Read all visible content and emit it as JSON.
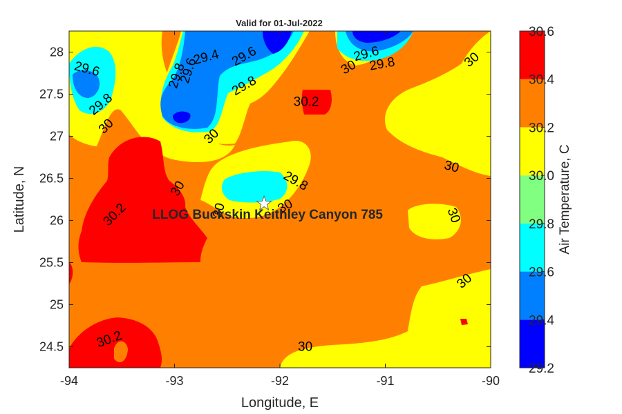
{
  "chart_data": {
    "type": "heatmap",
    "title": "Valid for 01-Jul-2022",
    "xlabel": "Longitude, E",
    "ylabel": "Latitude, N",
    "xlim": [
      -94,
      -90
    ],
    "ylim": [
      24.25,
      28.25
    ],
    "x_ticks": [
      -94,
      -93,
      -92,
      -91,
      -90
    ],
    "x_tick_labels": [
      "-94",
      "-93",
      "-92",
      "-91",
      "-90"
    ],
    "y_ticks": [
      24.5,
      25,
      25.5,
      26,
      26.5,
      27,
      27.5,
      28
    ],
    "y_tick_labels": [
      "24.5",
      "25",
      "25.5",
      "26",
      "26.5",
      "27",
      "27.5",
      "28"
    ],
    "colorbar": {
      "label": "Air Temperature, C",
      "levels": [
        29.2,
        29.4,
        29.6,
        29.8,
        30.0,
        30.2,
        30.4,
        30.6
      ],
      "tick_labels": [
        "29.2",
        "29.4",
        "29.6",
        "29.8",
        "30.0",
        "30.2",
        "30.4",
        "30.6"
      ],
      "colors": [
        "#0000ff",
        "#0080ff",
        "#00ffff",
        "#80ff80",
        "#ffff00",
        "#ff8000",
        "#ff0000"
      ]
    },
    "station": {
      "name": "LLOG Buckskin Keithley Canyon 785",
      "lon": -92.15,
      "lat": 26.2
    },
    "contour_labels": [
      {
        "text": "29.6",
        "lon": -93.83,
        "lat": 27.8,
        "rot": 15
      },
      {
        "text": "29.8",
        "lon": -93.7,
        "lat": 27.38,
        "rot": -40
      },
      {
        "text": "30",
        "lon": -93.65,
        "lat": 27.12,
        "rot": -45
      },
      {
        "text": "30.2",
        "lon": -93.57,
        "lat": 26.07,
        "rot": -45
      },
      {
        "text": "30.2",
        "lon": -93.62,
        "lat": 24.59,
        "rot": -20
      },
      {
        "text": "29.8",
        "lon": -92.98,
        "lat": 27.72,
        "rot": -72
      },
      {
        "text": "29.6",
        "lon": -92.87,
        "lat": 27.78,
        "rot": -72
      },
      {
        "text": "29.4",
        "lon": -92.7,
        "lat": 27.94,
        "rot": -15
      },
      {
        "text": "29.6",
        "lon": -92.34,
        "lat": 27.95,
        "rot": -30
      },
      {
        "text": "29.8",
        "lon": -92.34,
        "lat": 27.6,
        "rot": -30
      },
      {
        "text": "30",
        "lon": -92.65,
        "lat": 27.0,
        "rot": -45
      },
      {
        "text": "30",
        "lon": -92.97,
        "lat": 26.38,
        "rot": -60
      },
      {
        "text": "30",
        "lon": -92.58,
        "lat": 26.12,
        "rot": -75
      },
      {
        "text": "29.8",
        "lon": -91.85,
        "lat": 26.47,
        "rot": 30
      },
      {
        "text": "30",
        "lon": -91.95,
        "lat": 26.17,
        "rot": -30
      },
      {
        "text": "30.2",
        "lon": -91.75,
        "lat": 27.41,
        "rot": 0
      },
      {
        "text": "29.6",
        "lon": -91.18,
        "lat": 27.98,
        "rot": -15
      },
      {
        "text": "29.8",
        "lon": -91.03,
        "lat": 27.86,
        "rot": -10
      },
      {
        "text": "30",
        "lon": -91.35,
        "lat": 27.82,
        "rot": -30
      },
      {
        "text": "30",
        "lon": -90.18,
        "lat": 27.91,
        "rot": -40
      },
      {
        "text": "30",
        "lon": -90.37,
        "lat": 26.64,
        "rot": 15
      },
      {
        "text": "30",
        "lon": -90.35,
        "lat": 26.06,
        "rot": 70
      },
      {
        "text": "30",
        "lon": -90.25,
        "lat": 25.28,
        "rot": -40
      },
      {
        "text": "30",
        "lon": -91.76,
        "lat": 24.5,
        "rot": 0
      }
    ]
  }
}
